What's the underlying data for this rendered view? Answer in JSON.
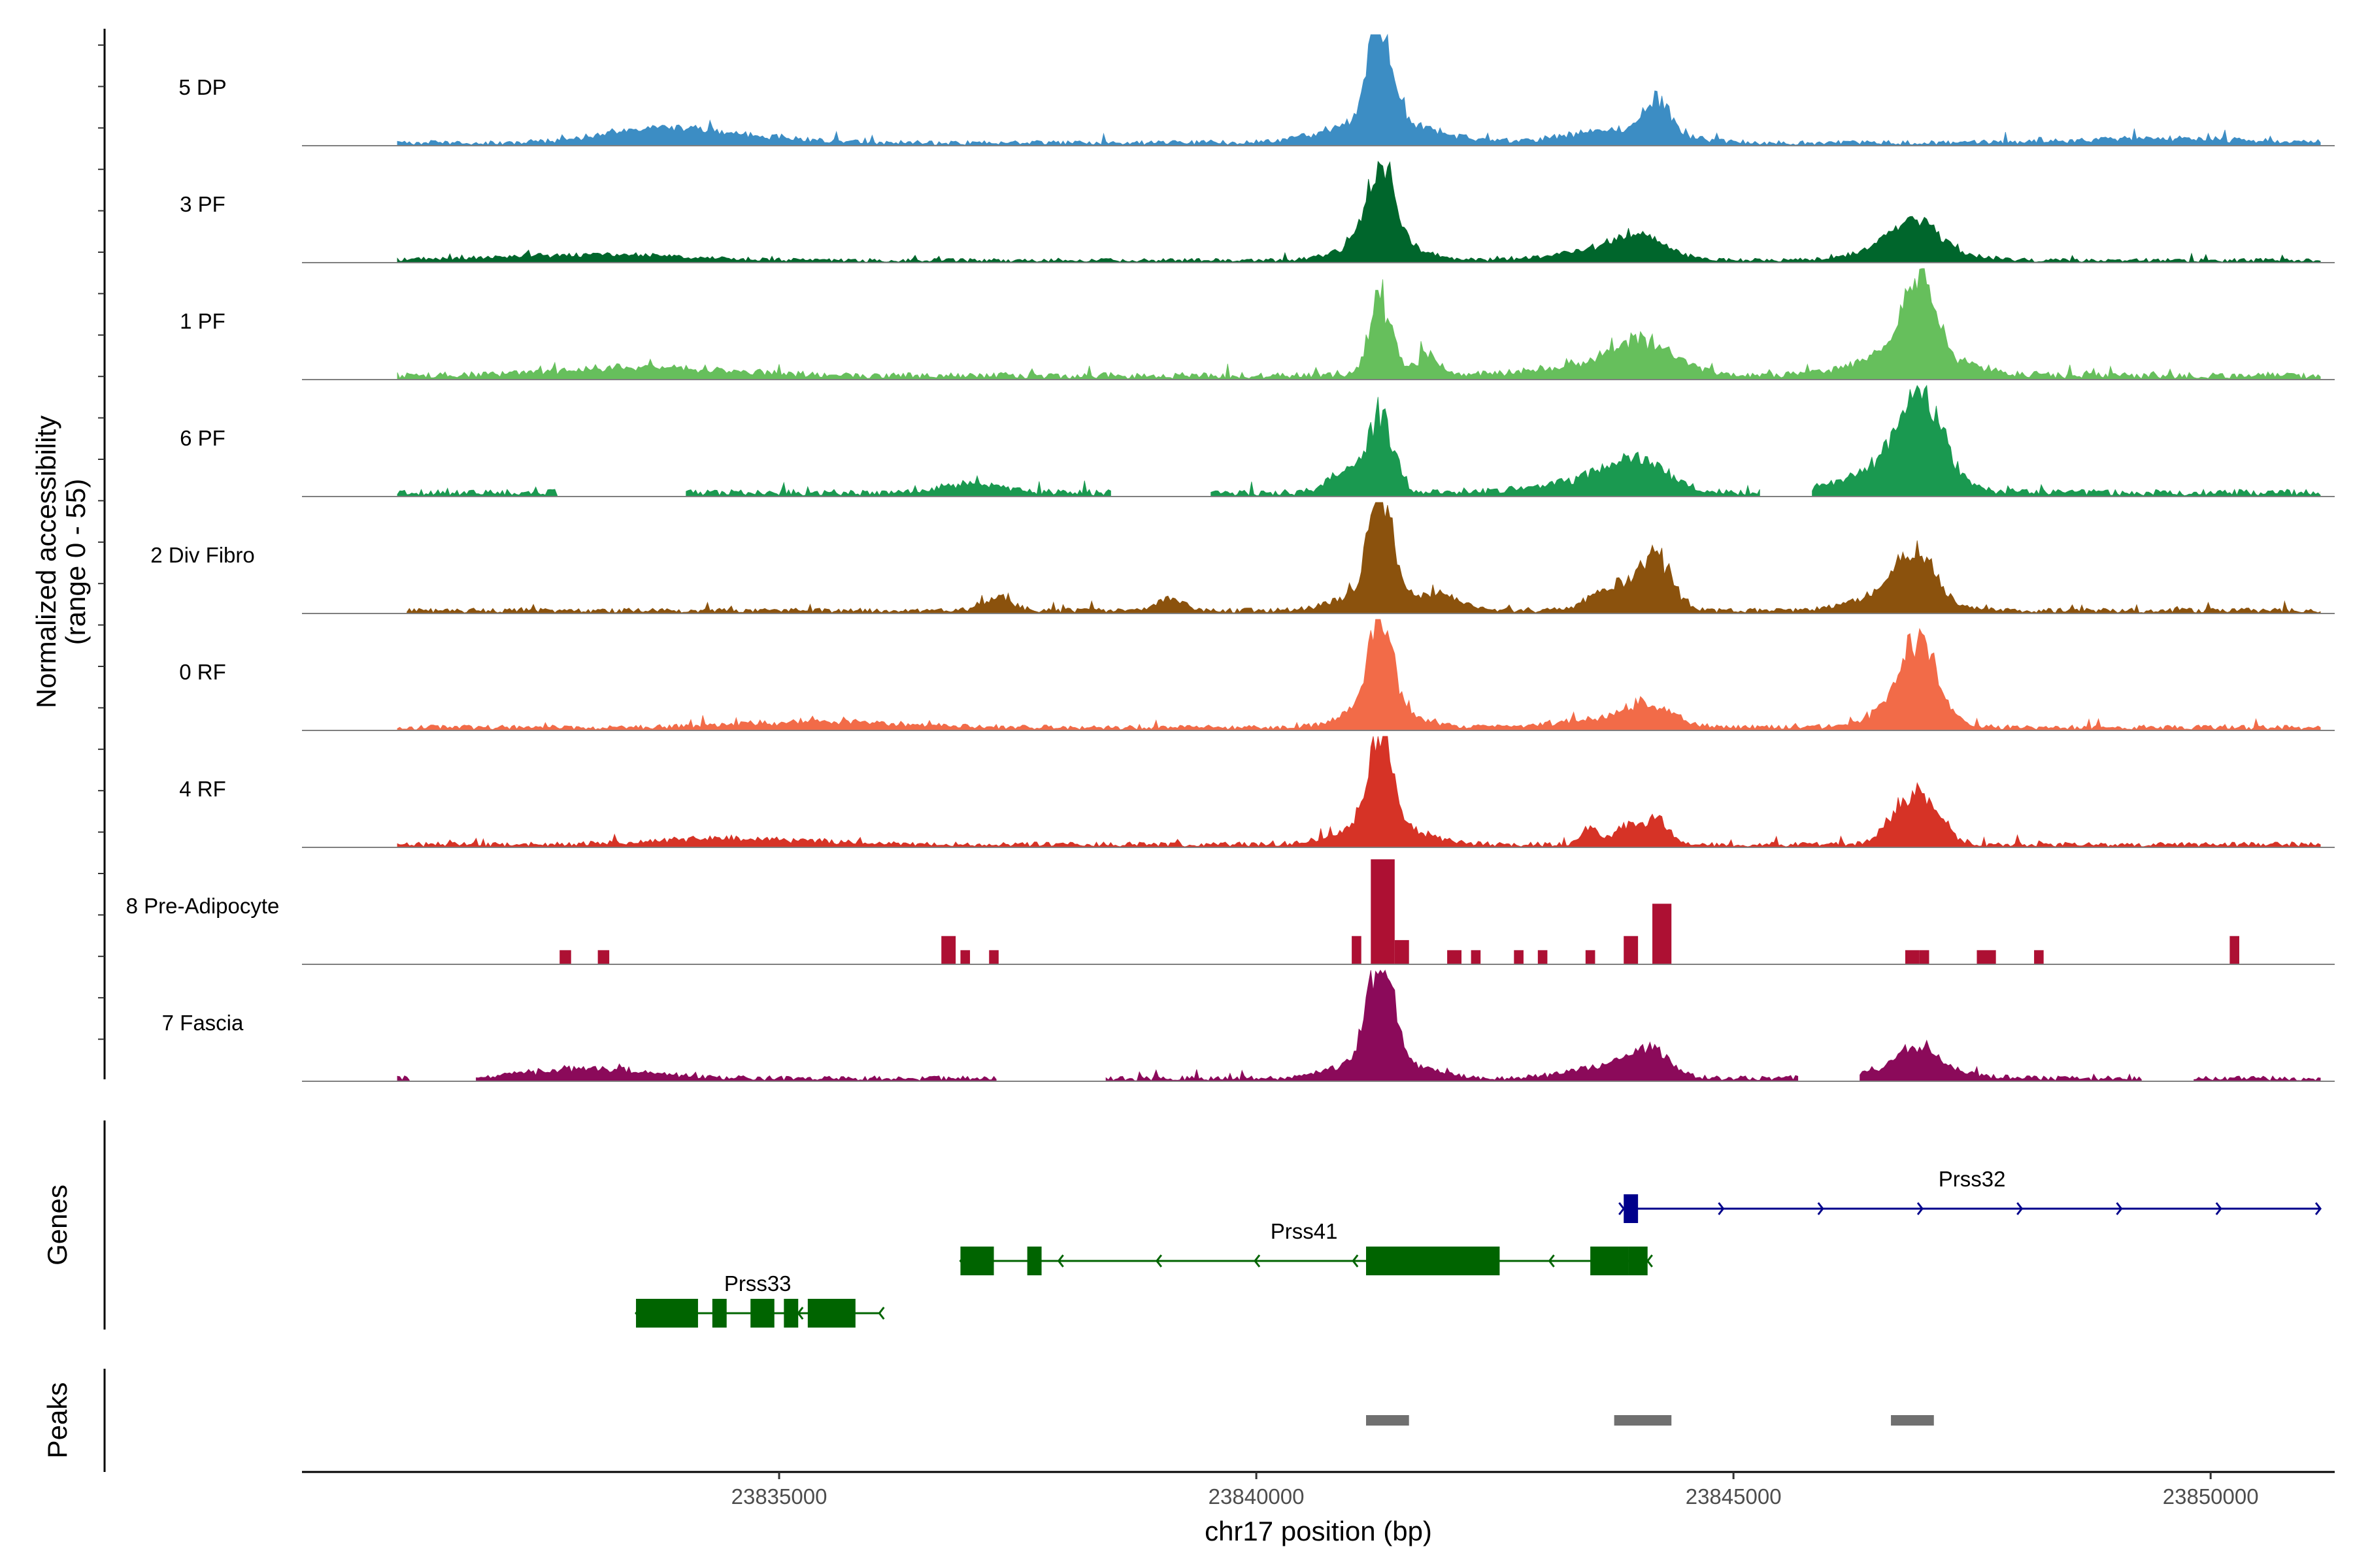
{
  "chart_data": {
    "type": "area",
    "title": "",
    "region": {
      "chromosome": "chr17",
      "start": 23830000,
      "end": 23851300
    },
    "xlabel": "chr17 position (bp)",
    "ylabel_line1": "Normalized accessibility",
    "ylabel_line2": "(range 0 - 55)",
    "ylim": [
      0,
      55
    ],
    "x_ticks": [
      {
        "value": 23835000,
        "label": "23835000"
      },
      {
        "value": 23840000,
        "label": "23840000"
      },
      {
        "value": 23845000,
        "label": "23845000"
      },
      {
        "value": 23850000,
        "label": "23850000"
      }
    ],
    "tracks": [
      {
        "name": "5 DP",
        "color": "#3C8DC4",
        "data_start": 23831000,
        "data_end": 23851150,
        "base": 1.5,
        "gaps": [],
        "peaks": [
          [
            23841300,
            50,
            120
          ],
          [
            23841300,
            12,
            500
          ],
          [
            23844200,
            17,
            140
          ],
          [
            23843800,
            6,
            550
          ],
          [
            23833600,
            5,
            500
          ],
          [
            23834300,
            4,
            700
          ],
          [
            23849500,
            2,
            900
          ]
        ]
      },
      {
        "name": "3 PF",
        "color": "#00662C",
        "data_start": 23831000,
        "data_end": 23851150,
        "base": 1.2,
        "gaps": [],
        "peaks": [
          [
            23841300,
            40,
            140
          ],
          [
            23841300,
            10,
            350
          ],
          [
            23844000,
            9,
            250
          ],
          [
            23843700,
            5,
            500
          ],
          [
            23846900,
            14,
            250
          ],
          [
            23846800,
            6,
            450
          ],
          [
            23833000,
            3,
            900
          ]
        ]
      },
      {
        "name": "1 PF",
        "color": "#66BF5C",
        "data_start": 23831000,
        "data_end": 23851150,
        "base": 2,
        "gaps": [],
        "peaks": [
          [
            23841300,
            38,
            120
          ],
          [
            23841800,
            10,
            120
          ],
          [
            23846950,
            42,
            160
          ],
          [
            23846850,
            12,
            500
          ],
          [
            23844050,
            14,
            300
          ],
          [
            23843600,
            5,
            700
          ],
          [
            23833600,
            4,
            900
          ]
        ]
      },
      {
        "name": "6 PF",
        "color": "#1A9950",
        "data_start": 23831000,
        "data_end": 23851150,
        "base": 2,
        "gaps": [
          [
            23832700,
            23834000
          ],
          [
            23838500,
            23839500
          ],
          [
            23845300,
            23845800
          ]
        ],
        "peaks": [
          [
            23841300,
            38,
            140
          ],
          [
            23840900,
            10,
            150
          ],
          [
            23846950,
            38,
            220
          ],
          [
            23846700,
            14,
            450
          ],
          [
            23844000,
            14,
            300
          ],
          [
            23843500,
            6,
            500
          ],
          [
            23837000,
            5,
            300
          ]
        ]
      },
      {
        "name": "2 Div Fibro",
        "color": "#8B520D",
        "data_start": 23831100,
        "data_end": 23851150,
        "base": 1.5,
        "gaps": [],
        "peaks": [
          [
            23841300,
            52,
            120
          ],
          [
            23841300,
            10,
            400
          ],
          [
            23844200,
            24,
            160
          ],
          [
            23843800,
            13,
            250
          ],
          [
            23846900,
            22,
            200
          ],
          [
            23846700,
            9,
            400
          ],
          [
            23837300,
            6,
            150
          ],
          [
            23839100,
            6,
            150
          ],
          [
            23842000,
            5,
            200
          ]
        ]
      },
      {
        "name": "0 RF",
        "color": "#F26B48",
        "data_start": 23831000,
        "data_end": 23851150,
        "base": 1.5,
        "gaps": [],
        "peaks": [
          [
            23841300,
            45,
            120
          ],
          [
            23841300,
            10,
            350
          ],
          [
            23846950,
            35,
            180
          ],
          [
            23846800,
            10,
            350
          ],
          [
            23844100,
            9,
            250
          ],
          [
            23843700,
            4,
            500
          ],
          [
            23835500,
            3,
            800
          ]
        ]
      },
      {
        "name": "4 RF",
        "color": "#D63326",
        "data_start": 23831000,
        "data_end": 23851150,
        "base": 1.5,
        "gaps": [],
        "peaks": [
          [
            23841300,
            44,
            130
          ],
          [
            23841300,
            10,
            400
          ],
          [
            23846850,
            22,
            200
          ],
          [
            23847100,
            10,
            150
          ],
          [
            23844200,
            12,
            120
          ],
          [
            23843900,
            9,
            120
          ],
          [
            23843500,
            8,
            100
          ],
          [
            23834500,
            3,
            800
          ]
        ]
      },
      {
        "name": "8 Pre-Adipocyte",
        "color": "#AD1033",
        "data_start": 23831600,
        "data_end": 23850500,
        "base": 0,
        "gaps": [],
        "peaks": [],
        "blocks": [
          [
            23832700,
            23832820,
            7
          ],
          [
            23833100,
            23833220,
            7
          ],
          [
            23836700,
            23836850,
            14
          ],
          [
            23836900,
            23837000,
            7
          ],
          [
            23837200,
            23837300,
            7
          ],
          [
            23841000,
            23841100,
            14
          ],
          [
            23841200,
            23841450,
            52
          ],
          [
            23841450,
            23841600,
            12
          ],
          [
            23842000,
            23842150,
            7
          ],
          [
            23842250,
            23842350,
            7
          ],
          [
            23842700,
            23842800,
            7
          ],
          [
            23842950,
            23843050,
            7
          ],
          [
            23843450,
            23843550,
            7
          ],
          [
            23843850,
            23844000,
            14
          ],
          [
            23844150,
            23844350,
            30
          ],
          [
            23846800,
            23846950,
            7
          ],
          [
            23846950,
            23847050,
            7
          ],
          [
            23847550,
            23847750,
            7
          ],
          [
            23848150,
            23848250,
            7
          ],
          [
            23850200,
            23850300,
            14
          ]
        ]
      },
      {
        "name": "7 Fascia",
        "color": "#8B0A5A",
        "data_start": 23831000,
        "data_end": 23851150,
        "base": 1.5,
        "gaps": [
          [
            23831150,
            23831800
          ],
          [
            23837300,
            23838400
          ],
          [
            23845700,
            23846300
          ],
          [
            23849300,
            23849800
          ]
        ],
        "peaks": [
          [
            23841300,
            50,
            130
          ],
          [
            23841300,
            10,
            400
          ],
          [
            23844100,
            12,
            200
          ],
          [
            23843700,
            6,
            400
          ],
          [
            23846950,
            12,
            200
          ],
          [
            23846800,
            5,
            500
          ],
          [
            23833000,
            5,
            600
          ]
        ]
      }
    ],
    "genes_panel_label": "Genes",
    "peaks_panel_label": "Peaks",
    "genes": [
      {
        "name": "Prss32",
        "strand": "+",
        "color": "#00008B",
        "start": 23843850,
        "end": 23851150,
        "exons": [
          [
            23843850,
            23844000
          ]
        ]
      },
      {
        "name": "Prss41",
        "strand": "-",
        "color": "#006400",
        "start": 23836900,
        "end": 23844100,
        "exons": [
          [
            23836900,
            23837250
          ],
          [
            23837600,
            23837750
          ],
          [
            23841150,
            23842550
          ],
          [
            23843500,
            23843900
          ],
          [
            23843900,
            23844100
          ]
        ]
      },
      {
        "name": "Prss33",
        "strand": "-",
        "color": "#006400",
        "start": 23833500,
        "end": 23836050,
        "exons": [
          [
            23833500,
            23834150
          ],
          [
            23834300,
            23834450
          ],
          [
            23834700,
            23834950
          ],
          [
            23835050,
            23835200
          ],
          [
            23835300,
            23835800
          ]
        ]
      }
    ],
    "peak_regions": [
      {
        "start": 23841150,
        "end": 23841600
      },
      {
        "start": 23843750,
        "end": 23844350
      },
      {
        "start": 23846650,
        "end": 23847100
      }
    ],
    "peak_color": "#707070"
  }
}
